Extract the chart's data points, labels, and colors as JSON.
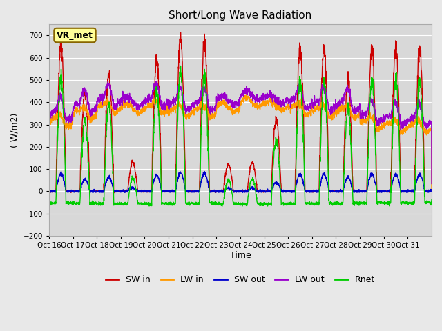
{
  "title": "Short/Long Wave Radiation",
  "ylabel": "( W/m2)",
  "xlabel": "Time",
  "station_label": "VR_met",
  "ylim": [
    -200,
    750
  ],
  "yticks": [
    -200,
    -100,
    0,
    100,
    200,
    300,
    400,
    500,
    600,
    700
  ],
  "xtick_labels": [
    "Oct 16",
    "Oct 17",
    "Oct 18",
    "Oct 19",
    "Oct 20",
    "Oct 21",
    "Oct 22",
    "Oct 23",
    "Oct 24",
    "Oct 25",
    "Oct 26",
    "Oct 27",
    "Oct 28",
    "Oct 29",
    "Oct 30",
    "Oct 31"
  ],
  "colors": {
    "SW_in": "#cc0000",
    "LW_in": "#ff9900",
    "SW_out": "#0000cc",
    "LW_out": "#9900cc",
    "Rnet": "#00cc00"
  },
  "background_color": "#e8e8e8",
  "plot_bg_color": "#d8d8d8",
  "legend_labels": [
    "SW in",
    "LW in",
    "SW out",
    "LW out",
    "Rnet"
  ]
}
